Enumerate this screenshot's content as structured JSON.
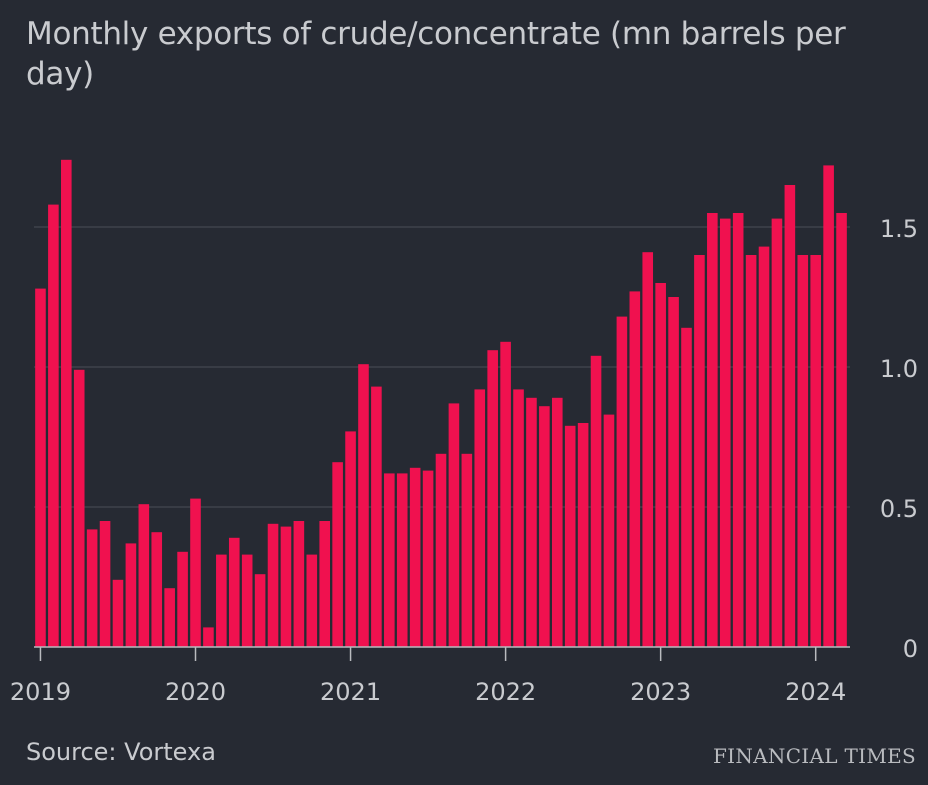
{
  "title": "Monthly exports of crude/concentrate (mn barrels per day)",
  "source": "Source: Vortexa",
  "brand": "FINANCIAL TIMES",
  "colors": {
    "bar": "#f0114f",
    "background": "#262a33",
    "grid": "#4a4e57",
    "text": "#c9cbcf"
  },
  "chart_data": {
    "type": "bar",
    "start": "2019-01",
    "values": [
      1.28,
      1.58,
      1.74,
      0.99,
      0.42,
      0.45,
      0.24,
      0.37,
      0.51,
      0.41,
      0.21,
      0.34,
      0.53,
      0.07,
      0.33,
      0.39,
      0.33,
      0.26,
      0.44,
      0.43,
      0.45,
      0.33,
      0.45,
      0.66,
      0.77,
      1.01,
      0.93,
      0.62,
      0.62,
      0.64,
      0.63,
      0.69,
      0.87,
      0.69,
      0.92,
      1.06,
      1.09,
      0.92,
      0.89,
      0.86,
      0.89,
      0.79,
      0.8,
      1.04,
      0.83,
      1.18,
      1.27,
      1.41,
      1.3,
      1.25,
      1.14,
      1.4,
      1.55,
      1.53,
      1.55,
      1.4,
      1.43,
      1.53,
      1.65,
      1.4,
      1.4,
      1.72,
      1.55
    ],
    "ylim": [
      0,
      1.75
    ],
    "yticks": [
      0,
      0.5,
      1.0,
      1.5
    ],
    "ytick_labels": [
      "0",
      "0.5",
      "1.0",
      "1.5"
    ],
    "xtick_labels": [
      "2019",
      "2020",
      "2021",
      "2022",
      "2023",
      "2024"
    ],
    "xlabel": "",
    "ylabel": "",
    "grid": true,
    "y_axis_side": "right"
  }
}
